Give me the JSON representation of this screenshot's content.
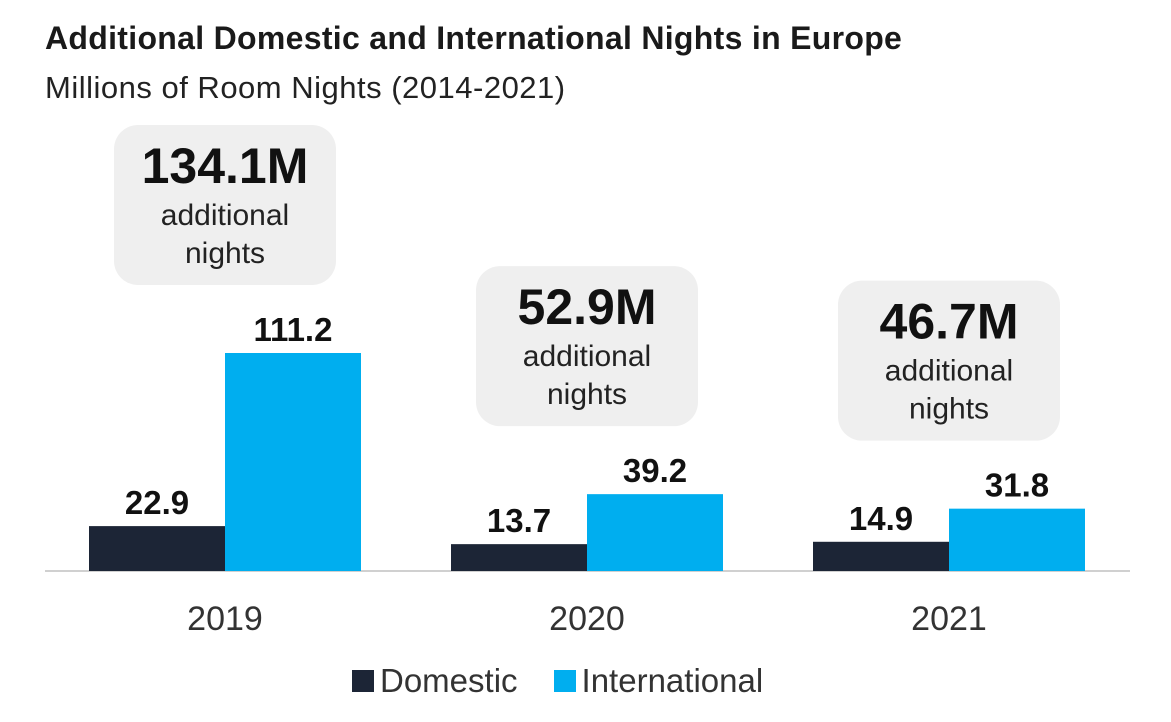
{
  "chart_data": {
    "type": "bar",
    "title": "Additional Domestic and International Nights in Europe",
    "subtitle": "Millions of Room Nights (2014-2021)",
    "categories": [
      "2019",
      "2020",
      "2021"
    ],
    "series": [
      {
        "name": "Domestic",
        "color": "#1c2536",
        "values": [
          22.9,
          13.7,
          14.9
        ]
      },
      {
        "name": "International",
        "color": "#00aeef",
        "values": [
          111.2,
          39.2,
          31.8
        ]
      }
    ],
    "value_labels": {
      "Domestic": [
        "22.9",
        "13.7",
        "14.9"
      ],
      "International": [
        "111.2",
        "39.2",
        "31.8"
      ]
    },
    "totals": [
      {
        "value": "134.1M",
        "text": "additional nights"
      },
      {
        "value": "52.9M",
        "text": "additional nights"
      },
      {
        "value": "46.7M",
        "text": "additional nights"
      }
    ],
    "ylim": [
      0,
      111.2
    ],
    "xlabel": "",
    "ylabel": "",
    "legend_position": "bottom-center"
  }
}
